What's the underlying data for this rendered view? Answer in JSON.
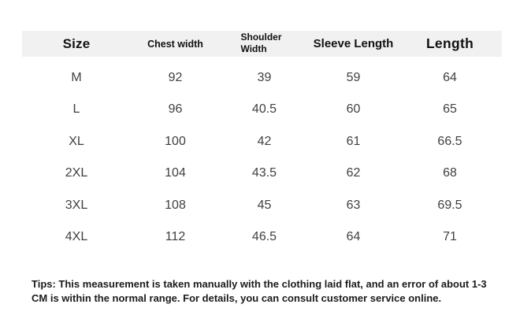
{
  "table": {
    "headers": [
      {
        "label": "Size"
      },
      {
        "label": "Chest width"
      },
      {
        "label": "Shoulder Width"
      },
      {
        "label": "Sleeve Length"
      },
      {
        "label": "Length"
      }
    ],
    "rows": [
      [
        "M",
        "92",
        "39",
        "59",
        "64"
      ],
      [
        "L",
        "96",
        "40.5",
        "60",
        "65"
      ],
      [
        "XL",
        "100",
        "42",
        "61",
        "66.5"
      ],
      [
        "2XL",
        "104",
        "43.5",
        "62",
        "68"
      ],
      [
        "3XL",
        "108",
        "45",
        "63",
        "69.5"
      ],
      [
        "4XL",
        "112",
        "46.5",
        "64",
        "71"
      ]
    ]
  },
  "tips": "Tips: This measurement is taken manually with the clothing laid flat, and an error of about 1-3 CM is within the normal range. For details, you can consult customer service online.",
  "colors": {
    "background": "#ffffff",
    "header_bg": "#f1f1f1",
    "header_text": "#111111",
    "cell_text": "#404040",
    "tips_text": "#1b1b1b"
  },
  "chart_data": {
    "type": "table",
    "title": "",
    "columns": [
      "Size",
      "Chest width",
      "Shoulder Width",
      "Sleeve Length",
      "Length"
    ],
    "rows": [
      [
        "M",
        92,
        39,
        59,
        64
      ],
      [
        "L",
        96,
        40.5,
        60,
        65
      ],
      [
        "XL",
        100,
        42,
        61,
        66.5
      ],
      [
        "2XL",
        104,
        43.5,
        62,
        68
      ],
      [
        "3XL",
        108,
        45,
        63,
        69.5
      ],
      [
        "4XL",
        112,
        46.5,
        64,
        71
      ]
    ],
    "layout_hints": {
      "header_background": "#f1f1f1",
      "grid": "off",
      "units": "cm"
    }
  }
}
